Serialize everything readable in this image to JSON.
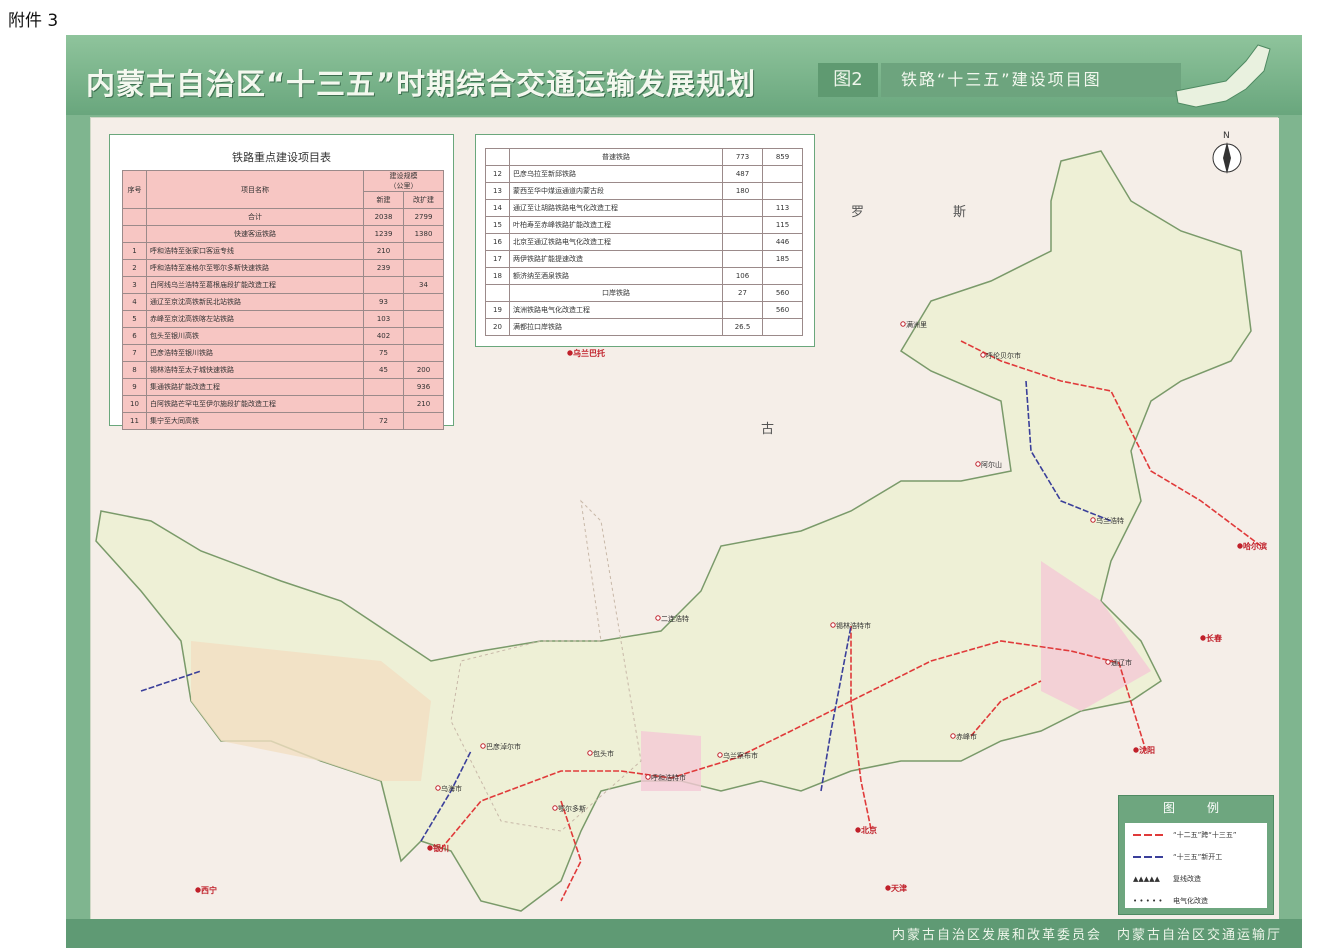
{
  "attachment_label": "附件 3",
  "header": {
    "title": "内蒙古自治区“十三五”时期综合交通运输发展规划",
    "figure_no": "图2",
    "subtitle": "铁路“十三五”建设项目图"
  },
  "footer": {
    "issuers": "内蒙古自治区发展和改革委员会　内蒙古自治区交通运输厅"
  },
  "table": {
    "title": "铁路重点建设项目表",
    "headers": {
      "no": "序号",
      "name": "项目名称",
      "scale": "建设规模",
      "unit": "（公里）",
      "new": "新建",
      "expand": "改扩建"
    },
    "total": {
      "label": "合计",
      "new": "2038",
      "expand": "2799"
    },
    "groups": [
      {
        "label": "快速客运铁路",
        "new": "1239",
        "expand": "1380",
        "rows": [
          {
            "no": "1",
            "name": "呼和浩特至张家口客运专线",
            "new": "210",
            "expand": ""
          },
          {
            "no": "2",
            "name": "呼和浩特至准格尔至鄂尔多斯快速铁路",
            "new": "239",
            "expand": ""
          },
          {
            "no": "3",
            "name": "白阿线乌兰浩特至葛根庙段扩能改造工程",
            "new": "",
            "expand": "34"
          },
          {
            "no": "4",
            "name": "通辽至京沈高铁新民北站铁路",
            "new": "93",
            "expand": ""
          },
          {
            "no": "5",
            "name": "赤峰至京沈高铁喀左站铁路",
            "new": "103",
            "expand": ""
          },
          {
            "no": "6",
            "name": "包头至银川高铁",
            "new": "402",
            "expand": ""
          },
          {
            "no": "7",
            "name": "巴彦浩特至银川铁路",
            "new": "75",
            "expand": ""
          },
          {
            "no": "8",
            "name": "锡林浩特至太子城快速铁路",
            "new": "45",
            "expand": "200"
          },
          {
            "no": "9",
            "name": "集通铁路扩能改造工程",
            "new": "",
            "expand": "936"
          },
          {
            "no": "10",
            "name": "白阿铁路芒罕屯至伊尔施段扩能改造工程",
            "new": "",
            "expand": "210"
          },
          {
            "no": "11",
            "name": "集宁至大同高铁",
            "new": "72",
            "expand": ""
          }
        ]
      },
      {
        "label": "普速铁路",
        "new": "773",
        "expand": "859",
        "rows": [
          {
            "no": "12",
            "name": "巴彦乌拉至新邱铁路",
            "new": "487",
            "expand": ""
          },
          {
            "no": "13",
            "name": "蒙西至华中煤运通道内蒙古段",
            "new": "180",
            "expand": ""
          },
          {
            "no": "14",
            "name": "通辽至让胡路铁路电气化改造工程",
            "new": "",
            "expand": "113"
          },
          {
            "no": "15",
            "name": "叶柏寿至赤峰铁路扩能改造工程",
            "new": "",
            "expand": "115"
          },
          {
            "no": "16",
            "name": "北京至通辽铁路电气化改造工程",
            "new": "",
            "expand": "446"
          },
          {
            "no": "17",
            "name": "两伊铁路扩能提速改造",
            "new": "",
            "expand": "185"
          },
          {
            "no": "18",
            "name": "额济纳至酒泉铁路",
            "new": "106",
            "expand": ""
          }
        ]
      },
      {
        "label": "口岸铁路",
        "new": "27",
        "expand": "560",
        "rows": [
          {
            "no": "19",
            "name": "滨洲铁路电气化改造工程",
            "new": "",
            "expand": "560"
          },
          {
            "no": "20",
            "name": "满都拉口岸铁路",
            "new": "26.5",
            "expand": ""
          }
        ]
      }
    ]
  },
  "legend": {
    "title": "图　例",
    "items": [
      {
        "label": "“十二五”跨“十三五”",
        "color": "#e03a3a"
      },
      {
        "label": "“十三五”新开工",
        "color": "#3a3f9a"
      },
      {
        "label": "复线改造",
        "symbol": "▲▲▲▲▲"
      },
      {
        "label": "电气化改造",
        "symbol": "• • • • •"
      }
    ]
  },
  "map": {
    "north_label": "N",
    "region_labels": [
      "罗",
      "斯",
      "古"
    ],
    "cities": [
      "呼伦贝尔市",
      "乌兰浩特",
      "通辽市",
      "赤峰市",
      "锡林浩特市",
      "乌兰察布市",
      "呼和浩特市",
      "包头市",
      "鄂尔多斯",
      "乌海市",
      "巴彦淖尔市",
      "二连浩特",
      "满洲里",
      "阿尔山",
      "乌兰巴托",
      "北京",
      "天津",
      "银川",
      "西宁",
      "沈阳",
      "长春",
      "哈尔滨"
    ],
    "colors": {
      "land": "#eef0d6",
      "outside": "#f5eee8",
      "high_speed": "#e03a3a",
      "new_start": "#3a3f9a"
    }
  }
}
